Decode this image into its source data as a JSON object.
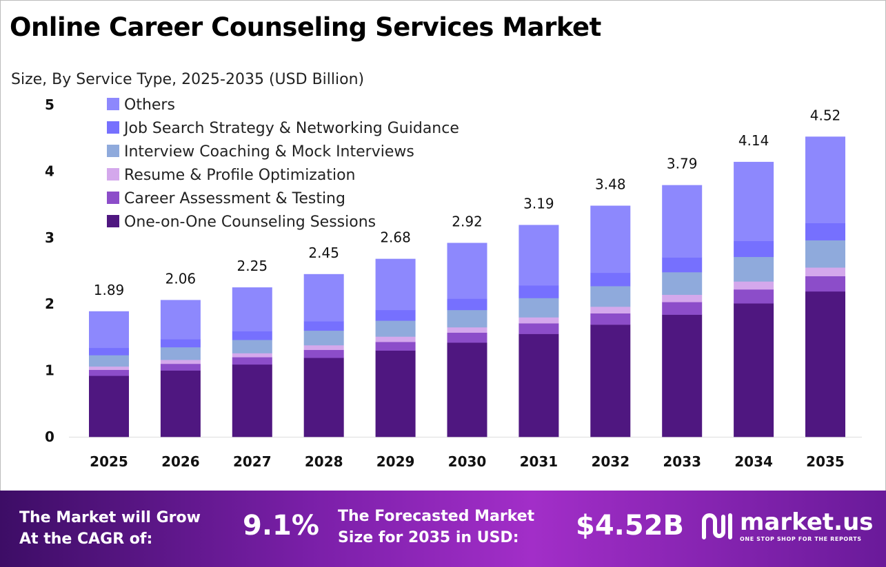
{
  "title": "Online Career Counseling Services Market",
  "subtitle": "Size, By Service Type, 2025-2035 (USD Billion)",
  "chart_data": {
    "type": "bar",
    "stacked": true,
    "categories": [
      "2025",
      "2026",
      "2027",
      "2028",
      "2029",
      "2030",
      "2031",
      "2032",
      "2033",
      "2034",
      "2035"
    ],
    "ylim": [
      0,
      5
    ],
    "yticks": [
      0,
      1,
      2,
      3,
      4,
      5
    ],
    "grid": false,
    "legend_placement": "top-left",
    "series": [
      {
        "name": "One-on-One Counseling Sessions",
        "color": "#4f1780",
        "values": [
          0.92,
          1.0,
          1.09,
          1.19,
          1.3,
          1.42,
          1.55,
          1.69,
          1.84,
          2.01,
          2.19
        ]
      },
      {
        "name": "Career Assessment & Testing",
        "color": "#8c4dc9",
        "values": [
          0.09,
          0.1,
          0.11,
          0.12,
          0.13,
          0.15,
          0.16,
          0.17,
          0.19,
          0.21,
          0.23
        ]
      },
      {
        "name": "Resume & Profile Optimization",
        "color": "#d4a8ec",
        "values": [
          0.05,
          0.06,
          0.06,
          0.07,
          0.08,
          0.08,
          0.09,
          0.1,
          0.11,
          0.12,
          0.13
        ]
      },
      {
        "name": "Interview Coaching & Mock Interviews",
        "color": "#8faadc",
        "values": [
          0.17,
          0.19,
          0.2,
          0.22,
          0.24,
          0.26,
          0.29,
          0.31,
          0.34,
          0.37,
          0.41
        ]
      },
      {
        "name": "Job Search Strategy & Networking Guidance",
        "color": "#7670fe",
        "values": [
          0.11,
          0.12,
          0.13,
          0.14,
          0.16,
          0.17,
          0.19,
          0.2,
          0.22,
          0.24,
          0.26
        ]
      },
      {
        "name": "Others",
        "color": "#8d88fd",
        "values": [
          0.55,
          0.59,
          0.66,
          0.71,
          0.77,
          0.84,
          0.91,
          1.01,
          1.09,
          1.19,
          1.3
        ]
      }
    ],
    "totals": [
      "1.89",
      "2.06",
      "2.25",
      "2.45",
      "2.68",
      "2.92",
      "3.19",
      "3.48",
      "3.79",
      "4.14",
      "4.52"
    ]
  },
  "footer": {
    "cagr_label": [
      "The Market will Grow",
      "At the CAGR of:"
    ],
    "cagr_value": "9.1%",
    "forecast_label": [
      "The Forecasted Market",
      "Size for 2035 in USD:"
    ],
    "forecast_value": "$4.52B",
    "logo_name": "market.us",
    "logo_tagline": "ONE STOP SHOP FOR THE REPORTS"
  }
}
